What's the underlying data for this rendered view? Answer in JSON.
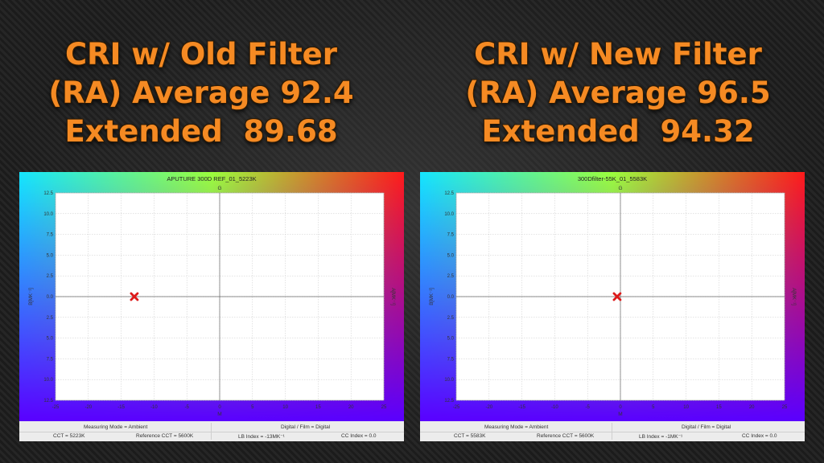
{
  "headline_left": {
    "line1": "CRI w/ Old Filter",
    "line2": "(RA) Average 92.4",
    "line3": "Extended  89.68"
  },
  "headline_right": {
    "line1": "CRI w/ New Filter",
    "line2": "(RA) Average 96.5",
    "line3": "Extended  94.32"
  },
  "info_left": {
    "measuring_mode": "Measuring Mode = Ambient",
    "digital_film": "Digital / Film = Digital",
    "cct": "CCT = 5223K",
    "reference_cct": "Reference CCT = 5600K",
    "lb_index": "LB Index = -13MK⁻¹",
    "cc_index": "CC Index = 0.0"
  },
  "info_right": {
    "measuring_mode": "Measuring Mode = Ambient",
    "digital_film": "Digital / Film = Digital",
    "cct": "CCT = 5583K",
    "reference_cct": "Reference CCT = 5600K",
    "lb_index": "LB Index = -1MK⁻¹",
    "cc_index": "CC Index = 0.0"
  },
  "colors": {
    "headline": "#f58a23",
    "marker": "#dd1a1a",
    "grid": "#c8c8c8",
    "panel": "#ececec"
  },
  "chart_data": [
    {
      "type": "scatter",
      "title": "APUTURE 300D REF_01_5223K",
      "xlabel": "M",
      "ylabel": "B[MK⁻¹]",
      "top_label": "G",
      "right_label": "A[MK⁻¹]",
      "xlim": [
        -25,
        25
      ],
      "ylim": [
        -12.5,
        12.5
      ],
      "xticks": [
        -25,
        -20,
        -15,
        -10,
        -5,
        0,
        5,
        10,
        15,
        20,
        25
      ],
      "yticks": [
        12.5,
        10.0,
        7.5,
        5.0,
        2.5,
        0.0,
        -2.5,
        -5.0,
        -7.5,
        -10.0,
        -12.5
      ],
      "ytick_labels": [
        "12.5",
        "10.0",
        "7.5",
        "5.0",
        "2.5",
        "0.0",
        "2.5",
        "5.0",
        "7.5",
        "10.0",
        "12.5"
      ],
      "grid": true,
      "points": [
        {
          "x": -13,
          "y": 0.0
        }
      ]
    },
    {
      "type": "scatter",
      "title": "300Dfilter-55K_01_5583K",
      "xlabel": "M",
      "ylabel": "B[MK⁻¹]",
      "top_label": "G",
      "right_label": "A[MK⁻¹]",
      "xlim": [
        -25,
        25
      ],
      "ylim": [
        -12.5,
        12.5
      ],
      "xticks": [
        -25,
        -20,
        -15,
        -10,
        -5,
        0,
        5,
        10,
        15,
        20,
        25
      ],
      "yticks": [
        12.5,
        10.0,
        7.5,
        5.0,
        2.5,
        0.0,
        -2.5,
        -5.0,
        -7.5,
        -10.0,
        -12.5
      ],
      "ytick_labels": [
        "12.5",
        "10.0",
        "7.5",
        "5.0",
        "2.5",
        "0.0",
        "2.5",
        "5.0",
        "7.5",
        "10.0",
        "12.5"
      ],
      "grid": true,
      "points": [
        {
          "x": -0.5,
          "y": 0.0
        }
      ]
    }
  ]
}
